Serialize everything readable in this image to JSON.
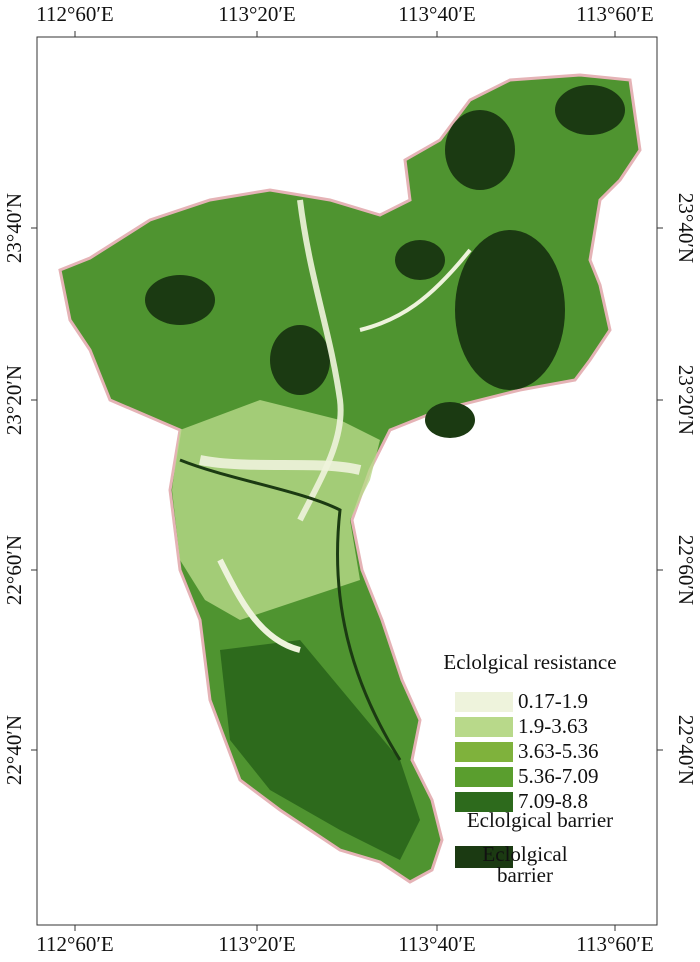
{
  "map": {
    "x_labels": [
      "112°60′E",
      "113°20′E",
      "113°40′E",
      "113°60′E"
    ],
    "y_labels": [
      "23°40′N",
      "23°20′N",
      "22°60′N",
      "22°40′N"
    ],
    "legend": {
      "title": "Eclolgical resistance",
      "items": [
        {
          "label": "0.17-1.9",
          "color": "#eef3dc"
        },
        {
          "label": "1.9-3.63",
          "color": "#b8d98a"
        },
        {
          "label": "3.63-5.36",
          "color": "#7fb23c"
        },
        {
          "label": "5.36-7.09",
          "color": "#5a9e2e"
        },
        {
          "label": "7.09-8.8",
          "color": "#2d6a1c"
        }
      ],
      "barrier_title": "Eclolgical barrier",
      "barrier_item": {
        "label": "Eclolgical barrier",
        "color": "#1b3a12"
      }
    }
  }
}
